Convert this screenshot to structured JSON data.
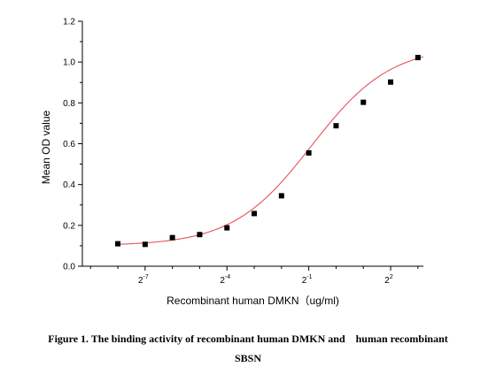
{
  "caption": {
    "line1": "Figure 1. The binding activity of recombinant human DMKN and    human recombinant",
    "line2": "SBSN"
  },
  "chart_data": {
    "type": "scatter",
    "title": "",
    "xlabel": "Recombinant human DMKN（ug/ml)",
    "ylabel": "Mean OD value",
    "x_scale": "log2",
    "xlim": [
      -9.3,
      3.2
    ],
    "ylim": [
      0,
      1.2
    ],
    "x_ticks": [
      {
        "base": "2",
        "exp": "-7",
        "value": -7
      },
      {
        "base": "2",
        "exp": "-4",
        "value": -4
      },
      {
        "base": "2",
        "exp": "-1",
        "value": -1
      },
      {
        "base": "2",
        "exp": "2",
        "value": 2
      }
    ],
    "y_ticks": [
      "0.0",
      "0.2",
      "0.4",
      "0.6",
      "0.8",
      "1.0",
      "1.2"
    ],
    "grid": false,
    "legend": "none",
    "colors": {
      "points": "#000000",
      "fit": "#e8505b",
      "axis": "#000000"
    },
    "series": [
      {
        "marker": "square",
        "x": [
          -8,
          -7,
          -6,
          -5,
          -4,
          -3,
          -2,
          -1,
          0,
          1,
          2,
          3
        ],
        "y": [
          0.11,
          0.107,
          0.14,
          0.155,
          0.188,
          0.258,
          0.345,
          0.555,
          0.688,
          0.803,
          0.902,
          1.022
        ]
      }
    ],
    "fit_curve": {
      "model": "4PL",
      "bottom": 0.1,
      "top": 1.08,
      "log_ec50": -0.9,
      "hill": 0.3,
      "x_range": [
        -8,
        3.8
      ]
    }
  }
}
